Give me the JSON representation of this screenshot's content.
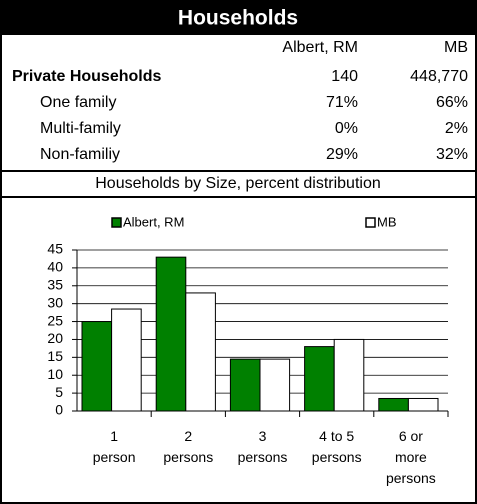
{
  "table": {
    "title": "Households",
    "columns": [
      "Albert, RM",
      "MB"
    ],
    "rows": [
      [
        "Private Households",
        "140",
        "448,770"
      ],
      [
        "One family",
        "71%",
        "66%"
      ],
      [
        "Multi-family",
        "0%",
        "2%"
      ],
      [
        "Non-familiy",
        "29%",
        "32%"
      ]
    ]
  },
  "chart_data": {
    "type": "bar",
    "title": "Households by Size, percent distribution",
    "categories": [
      "1\nperson",
      "2\npersons",
      "3\npersons",
      "4 to 5\npersons",
      "6 or\nmore\npersons"
    ],
    "series": [
      {
        "name": "Albert, RM",
        "color": "#008000",
        "values": [
          25,
          43,
          14.5,
          18,
          3.5
        ]
      },
      {
        "name": "MB",
        "color": "#ffffff",
        "values": [
          28.5,
          33,
          14.5,
          20,
          3.5
        ]
      }
    ],
    "ylim": [
      0,
      45
    ],
    "yticks": [
      0,
      5,
      10,
      15,
      20,
      25,
      30,
      35,
      40,
      45
    ],
    "grid": true,
    "legend": "top"
  }
}
